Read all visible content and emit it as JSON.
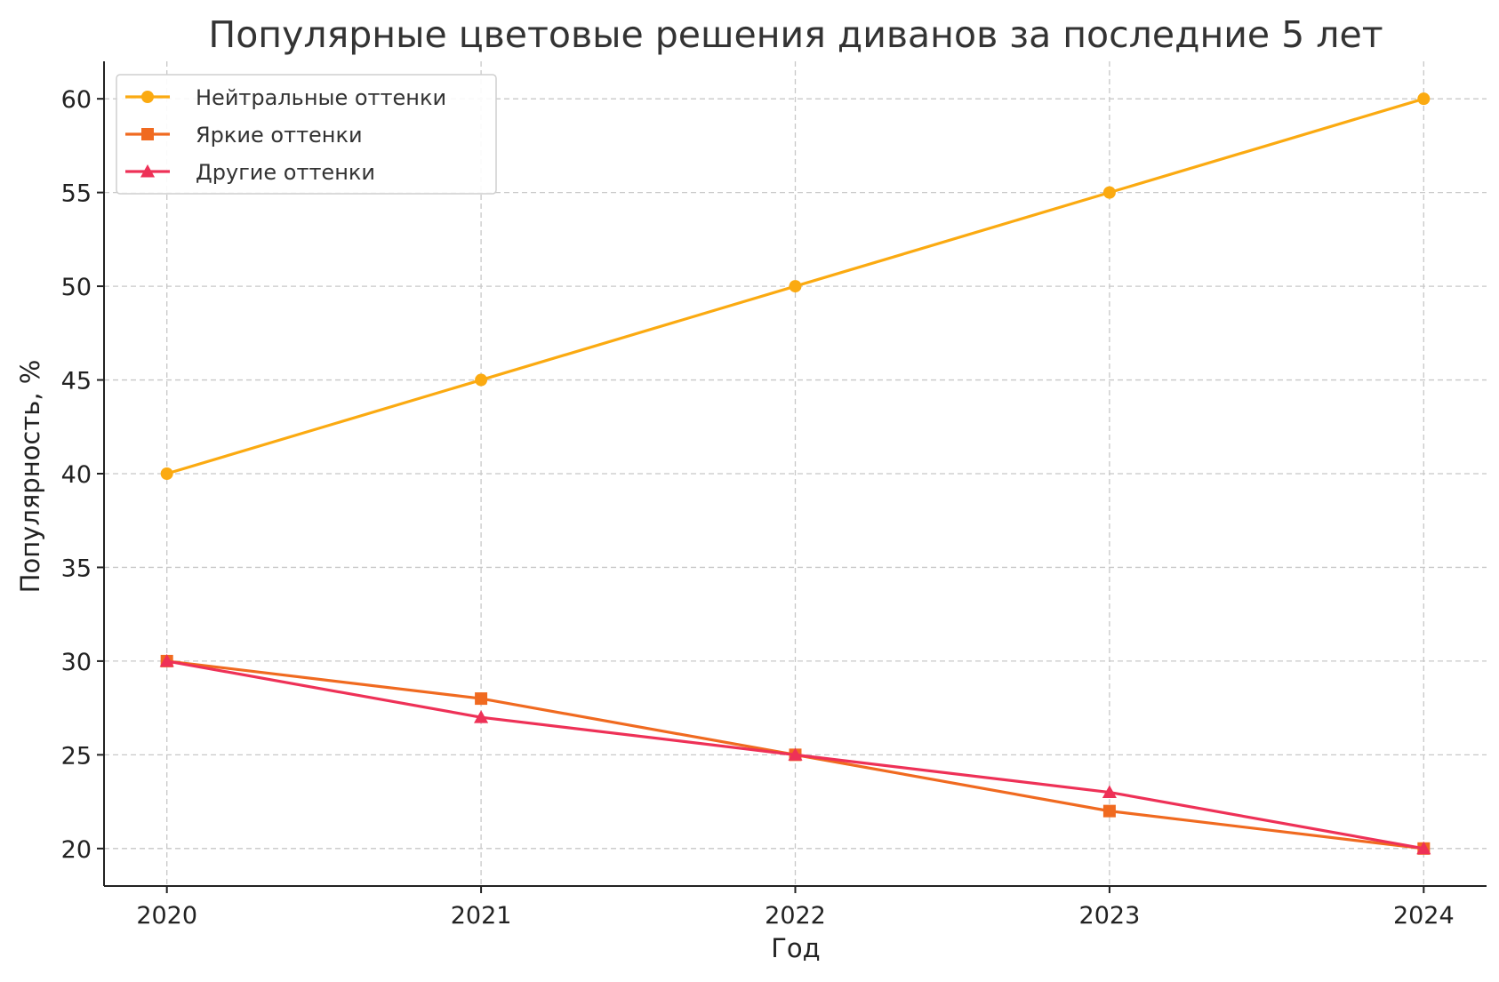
{
  "chart_data": {
    "type": "line",
    "title": "Популярные цветовые решения диванов за последние 5 лет",
    "xlabel": "Год",
    "ylabel": "Популярность, %",
    "x": [
      "2020",
      "2021",
      "2022",
      "2023",
      "2024"
    ],
    "xlim": [
      2019.8,
      2024.2
    ],
    "ylim": [
      18,
      62
    ],
    "yticks": [
      "20",
      "25",
      "30",
      "35",
      "40",
      "45",
      "50",
      "55",
      "60"
    ],
    "grid": true,
    "legend_position": "top-left",
    "series": [
      {
        "name": "Нейтральные оттенки",
        "marker": "circle",
        "color": "#FBAA11",
        "values": [
          40,
          45,
          50,
          55,
          60
        ]
      },
      {
        "name": "Яркие оттенки",
        "marker": "square",
        "color": "#F06A20",
        "values": [
          30,
          28,
          25,
          22,
          20
        ]
      },
      {
        "name": "Другие оттенки",
        "marker": "triangle",
        "color": "#EE3157",
        "values": [
          30,
          27,
          25,
          23,
          20
        ]
      }
    ]
  }
}
